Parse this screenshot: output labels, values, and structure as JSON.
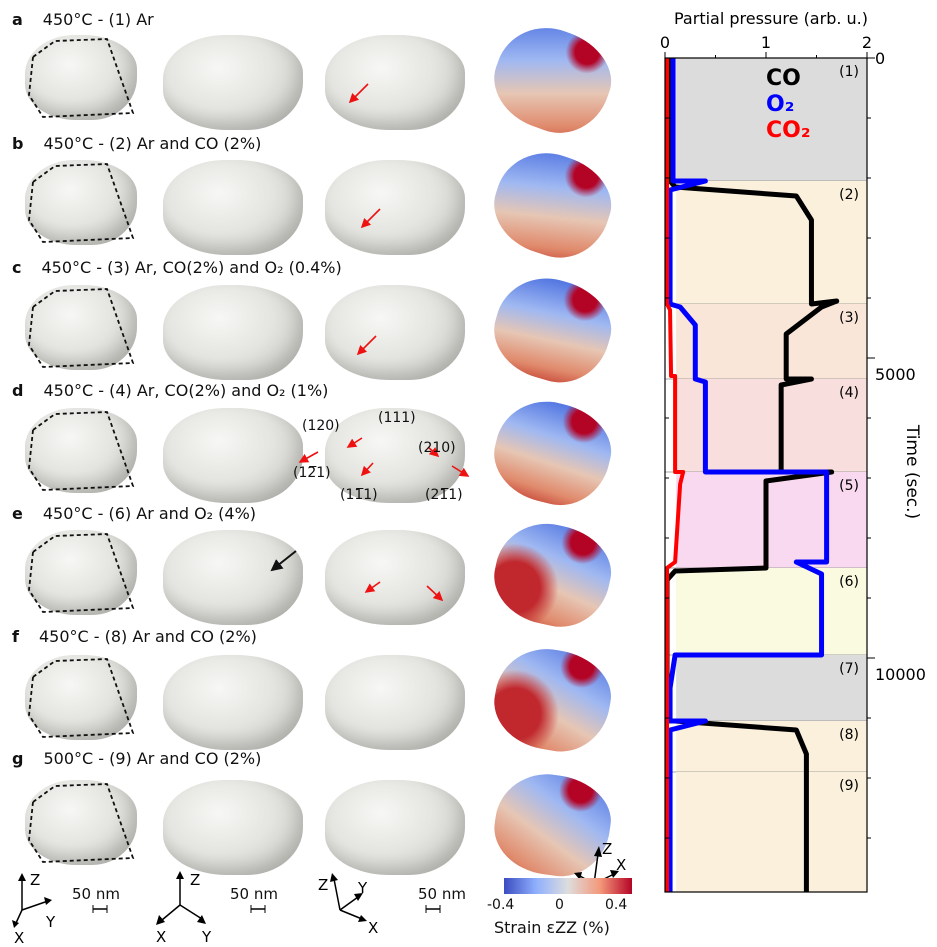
{
  "panels": [
    {
      "letter": "a",
      "title": "450°C - (1) Ar"
    },
    {
      "letter": "b",
      "title": "450°C - (2) Ar and CO (2%)"
    },
    {
      "letter": "c",
      "title": "450°C - (3) Ar, CO(2%) and O₂ (0.4%)"
    },
    {
      "letter": "d",
      "title": "450°C - (4) Ar, CO(2%) and O₂ (1%)"
    },
    {
      "letter": "e",
      "title": "450°C - (6) Ar and O₂ (4%)"
    },
    {
      "letter": "f",
      "title": "450°C - (8) Ar and CO (2%)"
    },
    {
      "letter": "g",
      "title": "500°C - (9) Ar and CO (2%)"
    }
  ],
  "facet_labels": [
    "(120)",
    "(111)",
    "(210)",
    "(12̅1)",
    "(11̅1)",
    "(21̅1)"
  ],
  "scale_bar": "50 nm",
  "axes_labels": {
    "x": "X",
    "y": "Y",
    "z": "Z"
  },
  "colorbar": {
    "min": "-0.4",
    "mid": "0",
    "max": "0.4",
    "label": "Strain εZZ (%)"
  },
  "colors": {
    "low": "#3b4cc0",
    "mid": "#dddddd",
    "high": "#b40426",
    "co": "#000000",
    "o2": "#0000ff",
    "co2": "#ff0000"
  },
  "chart_data": {
    "type": "line",
    "xlabel": "Partial pressure (arb. u.)",
    "ylabel": "Time (sec.)",
    "xlim": [
      0,
      2
    ],
    "ylim": [
      0,
      13900
    ],
    "x_ticks": [
      "0",
      "1",
      "2"
    ],
    "y_ticks": [
      "0",
      "5000",
      "10000"
    ],
    "y_tick_values": [
      0,
      5000,
      10000
    ],
    "legend": [
      "CO",
      "O₂",
      "CO₂"
    ],
    "stages": [
      {
        "label": "(1)",
        "start": 0,
        "end": 2050,
        "color": "#dcdcdc"
      },
      {
        "label": "(2)",
        "start": 2050,
        "end": 4100,
        "color": "#faf0dc"
      },
      {
        "label": "(3)",
        "start": 4100,
        "end": 5350,
        "color": "#f9e6d8"
      },
      {
        "label": "(4)",
        "start": 5350,
        "end": 6900,
        "color": "#f8dedc"
      },
      {
        "label": "(5)",
        "start": 6900,
        "end": 8500,
        "color": "#f9d9f0"
      },
      {
        "label": "(6)",
        "start": 8500,
        "end": 9950,
        "color": "#fafae0"
      },
      {
        "label": "(7)",
        "start": 9950,
        "end": 11050,
        "color": "#dcdcdc"
      },
      {
        "label": "(8)",
        "start": 11050,
        "end": 11900,
        "color": "#faf0dc"
      },
      {
        "label": "(9)",
        "start": 11900,
        "end": 13900,
        "color": "#faf0dc"
      }
    ],
    "series": [
      {
        "name": "CO",
        "color": "#000000",
        "points": [
          [
            0.05,
            0
          ],
          [
            0.05,
            2050
          ],
          [
            0.1,
            2150
          ],
          [
            1.3,
            2300
          ],
          [
            1.45,
            2700
          ],
          [
            1.45,
            4100
          ],
          [
            1.7,
            4050
          ],
          [
            1.55,
            4150
          ],
          [
            1.2,
            4600
          ],
          [
            1.2,
            5350
          ],
          [
            1.45,
            5350
          ],
          [
            1.15,
            5450
          ],
          [
            1.15,
            6900
          ],
          [
            1.65,
            6900
          ],
          [
            1.0,
            7050
          ],
          [
            1.0,
            8500
          ],
          [
            0.1,
            8550
          ],
          [
            0.02,
            8700
          ],
          [
            0.02,
            11050
          ],
          [
            0.1,
            11050
          ],
          [
            1.3,
            11200
          ],
          [
            1.4,
            11600
          ],
          [
            1.4,
            13900
          ]
        ]
      },
      {
        "name": "O2",
        "color": "#0000ff",
        "points": [
          [
            0.08,
            0
          ],
          [
            0.08,
            2050
          ],
          [
            0.4,
            2050
          ],
          [
            0.05,
            2200
          ],
          [
            0.05,
            4100
          ],
          [
            0.15,
            4150
          ],
          [
            0.3,
            4450
          ],
          [
            0.3,
            5350
          ],
          [
            0.4,
            5400
          ],
          [
            0.4,
            6900
          ],
          [
            1.6,
            6900
          ],
          [
            1.6,
            8400
          ],
          [
            1.3,
            8400
          ],
          [
            1.55,
            8600
          ],
          [
            1.55,
            9950
          ],
          [
            0.1,
            9950
          ],
          [
            0.05,
            10500
          ],
          [
            0.05,
            11050
          ],
          [
            0.4,
            11050
          ],
          [
            0.05,
            11200
          ],
          [
            0.05,
            13900
          ]
        ]
      },
      {
        "name": "CO2",
        "color": "#ff0000",
        "points": [
          [
            0.02,
            0
          ],
          [
            0.02,
            4100
          ],
          [
            0.05,
            4200
          ],
          [
            0.06,
            5300
          ],
          [
            0.1,
            5300
          ],
          [
            0.1,
            6900
          ],
          [
            0.18,
            6900
          ],
          [
            0.15,
            7100
          ],
          [
            0.1,
            8400
          ],
          [
            0.02,
            8500
          ],
          [
            0.02,
            13900
          ]
        ]
      }
    ]
  }
}
